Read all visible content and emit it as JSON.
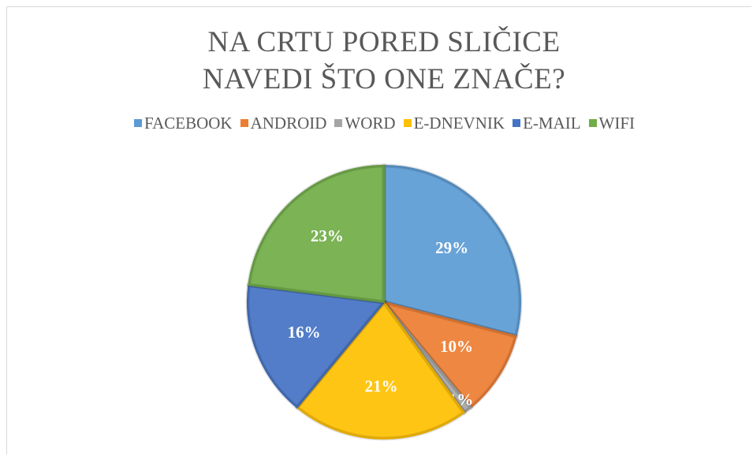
{
  "chart_data": {
    "type": "pie",
    "title": "NA CRTU PORED SLIČICE NAVEDI ŠTO ONE ZNAČE?",
    "categories": [
      "FACEBOOK",
      "ANDROID",
      "WORD",
      "E-DNEVNIK",
      "E-MAIL",
      "WIFI"
    ],
    "values": [
      29,
      10,
      1,
      21,
      16,
      23
    ],
    "value_labels": [
      "29%",
      "10%",
      "1%",
      "21%",
      "16%",
      "23%"
    ],
    "colors": [
      "#5b9bd5",
      "#ed7d31",
      "#a5a5a5",
      "#ffc000",
      "#4472c4",
      "#70ad47"
    ],
    "legend": "top"
  }
}
